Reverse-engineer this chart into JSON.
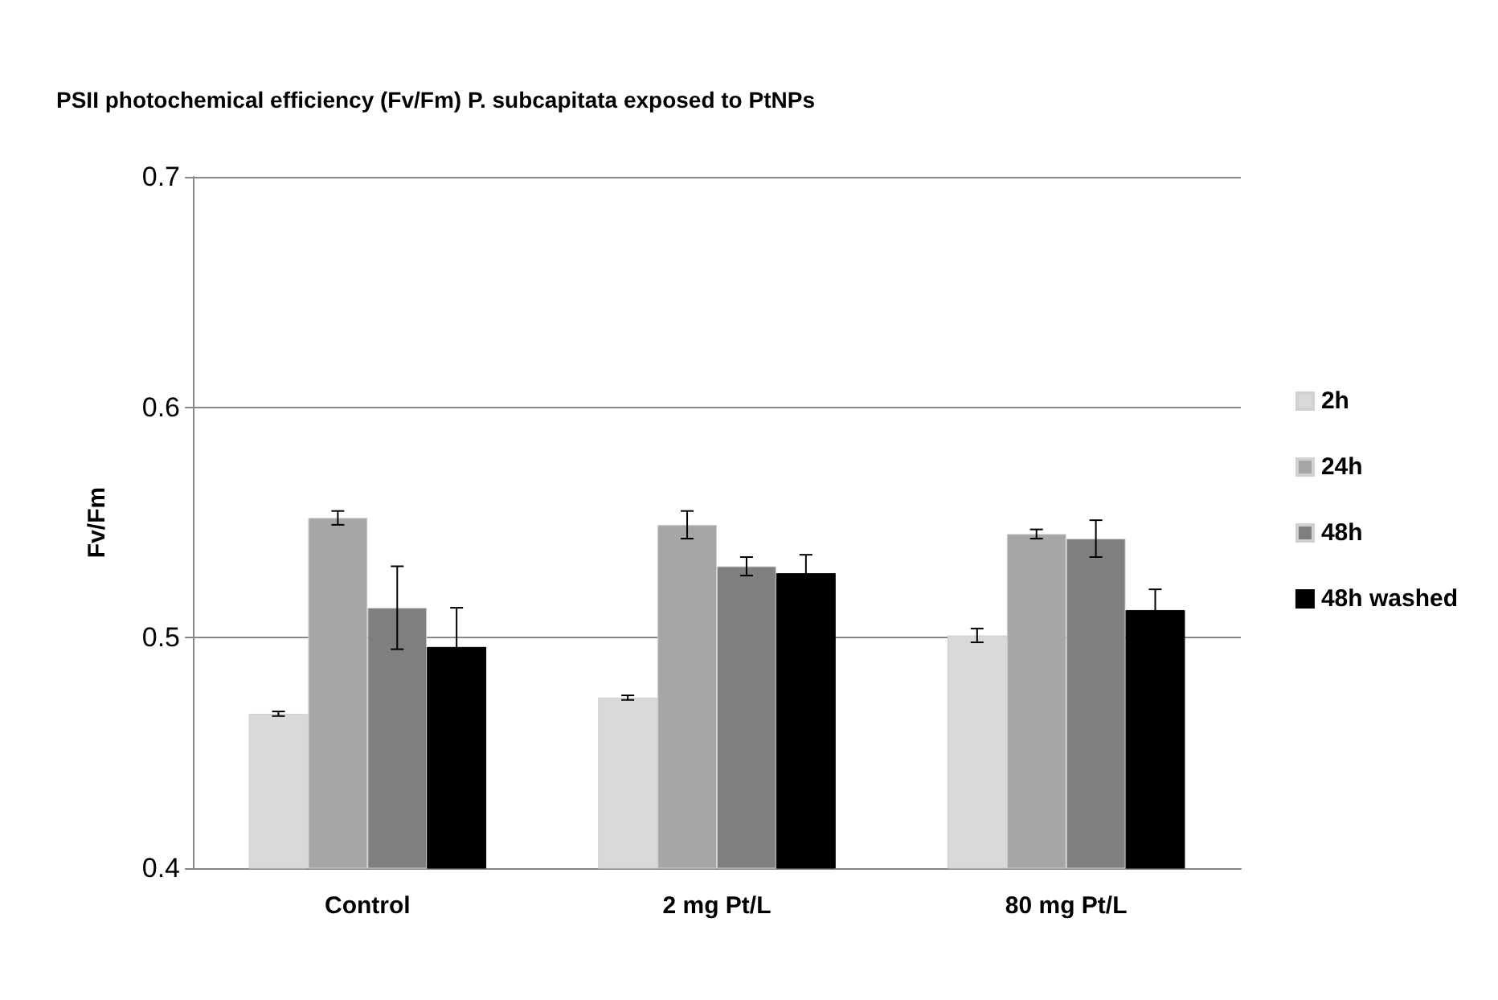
{
  "chart_data": {
    "type": "bar",
    "title": "PSII photochemical efficiency (Fv/Fm) P. subcapitata exposed to PtNPs",
    "ylabel": "Fv/Fm",
    "categories": [
      "Control",
      "2 mg Pt/L",
      "80 mg Pt/L"
    ],
    "series": [
      {
        "name": "2h",
        "color": "#d9d9d9",
        "values": [
          0.467,
          0.474,
          0.501
        ],
        "errors": [
          0.001,
          0.001,
          0.003
        ]
      },
      {
        "name": "24h",
        "color": "#a6a6a6",
        "values": [
          0.552,
          0.549,
          0.545
        ],
        "errors": [
          0.003,
          0.006,
          0.002
        ]
      },
      {
        "name": "48h",
        "color": "#7f7f7f",
        "values": [
          0.513,
          0.531,
          0.543
        ],
        "errors": [
          0.018,
          0.004,
          0.008
        ]
      },
      {
        "name": "48h washed",
        "color": "#000000",
        "values": [
          0.496,
          0.528,
          0.512
        ],
        "errors": [
          0.017,
          0.008,
          0.009
        ]
      }
    ],
    "ylim": [
      0.4,
      0.7
    ],
    "yticks": [
      0.4,
      0.5,
      0.6,
      0.7
    ],
    "grid": "y",
    "legend": "right"
  }
}
